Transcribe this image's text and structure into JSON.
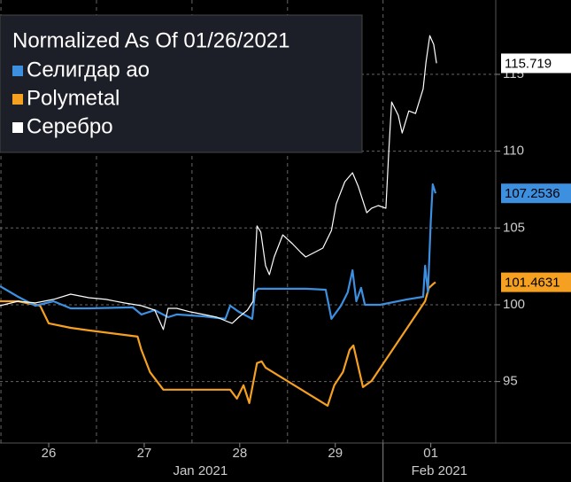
{
  "chart_data": {
    "type": "line",
    "title": "Normalized As Of 01/26/2021",
    "xlim": [
      -0.51,
      4.68
    ],
    "xticks": [
      {
        "value": 0,
        "label": "26"
      },
      {
        "value": 1,
        "label": "27"
      },
      {
        "value": 2,
        "label": "28"
      },
      {
        "value": 3,
        "label": "29"
      },
      {
        "value": 4,
        "label": "01"
      }
    ],
    "months": [
      "Jan 2021",
      "Feb 2021"
    ],
    "ylim": [
      91,
      119.84
    ],
    "yticks": [
      95,
      100,
      105,
      110,
      115
    ],
    "grid": true,
    "legend": "top-left",
    "series": [
      {
        "name": "Селигдар ао",
        "color": "#3d8fe0",
        "x": [
          -0.51,
          -0.32,
          -0.14,
          0.05,
          0.23,
          0.42,
          0.88,
          0.97,
          1.11,
          1.25,
          1.34,
          1.62,
          1.85,
          1.9,
          1.99,
          2.13,
          2.16,
          2.19,
          2.45,
          2.69,
          2.9,
          2.96,
          3.06,
          3.13,
          3.18,
          3.22,
          3.27,
          3.31,
          3.47,
          3.75,
          3.92,
          3.94,
          3.97,
          4.0,
          4.02,
          4.05
        ],
        "values": [
          101.21,
          100.52,
          99.94,
          100.23,
          99.77,
          99.77,
          99.83,
          99.37,
          99.65,
          99.19,
          99.37,
          99.25,
          99.08,
          99.94,
          99.54,
          99.08,
          100.81,
          101.04,
          101.04,
          101.04,
          100.98,
          99.08,
          99.94,
          100.81,
          102.25,
          100.23,
          101.1,
          100,
          100,
          100.35,
          100.52,
          102.54,
          100.81,
          105.42,
          107.84,
          107.2536
        ]
      },
      {
        "name": "Polymetal",
        "color": "#f5a020",
        "x": [
          -0.51,
          -0.32,
          -0.09,
          0,
          0.23,
          0.42,
          0.93,
          0.97,
          1.06,
          1.2,
          1.9,
          1.97,
          2.04,
          2.1,
          2.18,
          2.23,
          2.27,
          2.92,
          2.99,
          3.08,
          3.15,
          3.19,
          3.29,
          3.38,
          3.94,
          3.98,
          4.03,
          4.05
        ],
        "values": [
          100.23,
          100.23,
          99.94,
          98.79,
          98.5,
          98.33,
          97.93,
          97.06,
          95.62,
          94.47,
          94.47,
          93.89,
          94.76,
          93.6,
          96.2,
          96.31,
          95.91,
          93.43,
          94.76,
          95.62,
          97.06,
          97.35,
          94.64,
          95.04,
          100.23,
          101.1,
          101.38,
          101.4631
        ]
      },
      {
        "name": "Серебро",
        "color": "#ffffff",
        "x": [
          -0.51,
          -0.32,
          -0.14,
          0.05,
          0.23,
          0.42,
          0.6,
          0.79,
          0.97,
          1.11,
          1.2,
          1.25,
          1.34,
          1.48,
          1.62,
          1.76,
          1.85,
          1.92,
          1.99,
          2.08,
          2.14,
          2.18,
          2.22,
          2.27,
          2.31,
          2.36,
          2.45,
          2.55,
          2.64,
          2.69,
          2.78,
          2.87,
          2.96,
          3.01,
          3.1,
          3.18,
          3.24,
          3.33,
          3.38,
          3.45,
          3.53,
          3.56,
          3.59,
          3.66,
          3.7,
          3.77,
          3.84,
          3.92,
          3.95,
          3.99,
          4.03,
          4.06
        ],
        "values": [
          99.94,
          100.23,
          100.12,
          100.35,
          100.69,
          100.46,
          100.35,
          100.12,
          99.94,
          99.65,
          98.39,
          99.77,
          99.77,
          99.54,
          99.37,
          99.19,
          98.96,
          98.79,
          99.19,
          99.65,
          100.23,
          105.13,
          104.73,
          102.54,
          101.96,
          103.11,
          104.55,
          103.98,
          103.4,
          103.11,
          103.4,
          103.69,
          104.84,
          106.57,
          108.01,
          108.59,
          107.72,
          105.99,
          106.28,
          106.46,
          106.28,
          110.03,
          113.2,
          112.33,
          111.18,
          112.62,
          112.45,
          114.06,
          115.79,
          117.52,
          116.95,
          115.719
        ]
      }
    ]
  }
}
